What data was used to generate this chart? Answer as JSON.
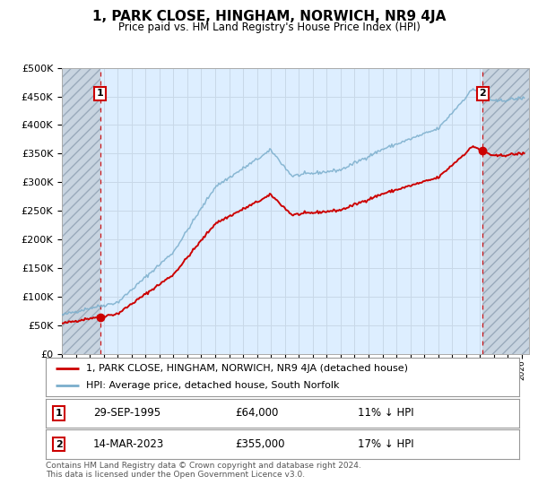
{
  "title": "1, PARK CLOSE, HINGHAM, NORWICH, NR9 4JA",
  "subtitle": "Price paid vs. HM Land Registry's House Price Index (HPI)",
  "ylabel_ticks": [
    "£0",
    "£50K",
    "£100K",
    "£150K",
    "£200K",
    "£250K",
    "£300K",
    "£350K",
    "£400K",
    "£450K",
    "£500K"
  ],
  "ytick_vals": [
    0,
    50000,
    100000,
    150000,
    200000,
    250000,
    300000,
    350000,
    400000,
    450000,
    500000
  ],
  "ylim": [
    0,
    500000
  ],
  "xlim_start": 1993.0,
  "xlim_end": 2026.5,
  "sale1_x": 1995.75,
  "sale1_y": 64000,
  "sale2_x": 2023.2,
  "sale2_y": 355000,
  "legend_line1": "1, PARK CLOSE, HINGHAM, NORWICH, NR9 4JA (detached house)",
  "legend_line2": "HPI: Average price, detached house, South Norfolk",
  "annot1_date": "29-SEP-1995",
  "annot1_price": "£64,000",
  "annot1_hpi": "11% ↓ HPI",
  "annot2_date": "14-MAR-2023",
  "annot2_price": "£355,000",
  "annot2_hpi": "17% ↓ HPI",
  "footnote": "Contains HM Land Registry data © Crown copyright and database right 2024.\nThis data is licensed under the Open Government Licence v3.0.",
  "red_line_color": "#cc0000",
  "blue_line_color": "#7aaecc",
  "grid_color": "#c8d8e8",
  "plot_bg": "#ddeeff",
  "hatch_bg": "#c8d4e0"
}
